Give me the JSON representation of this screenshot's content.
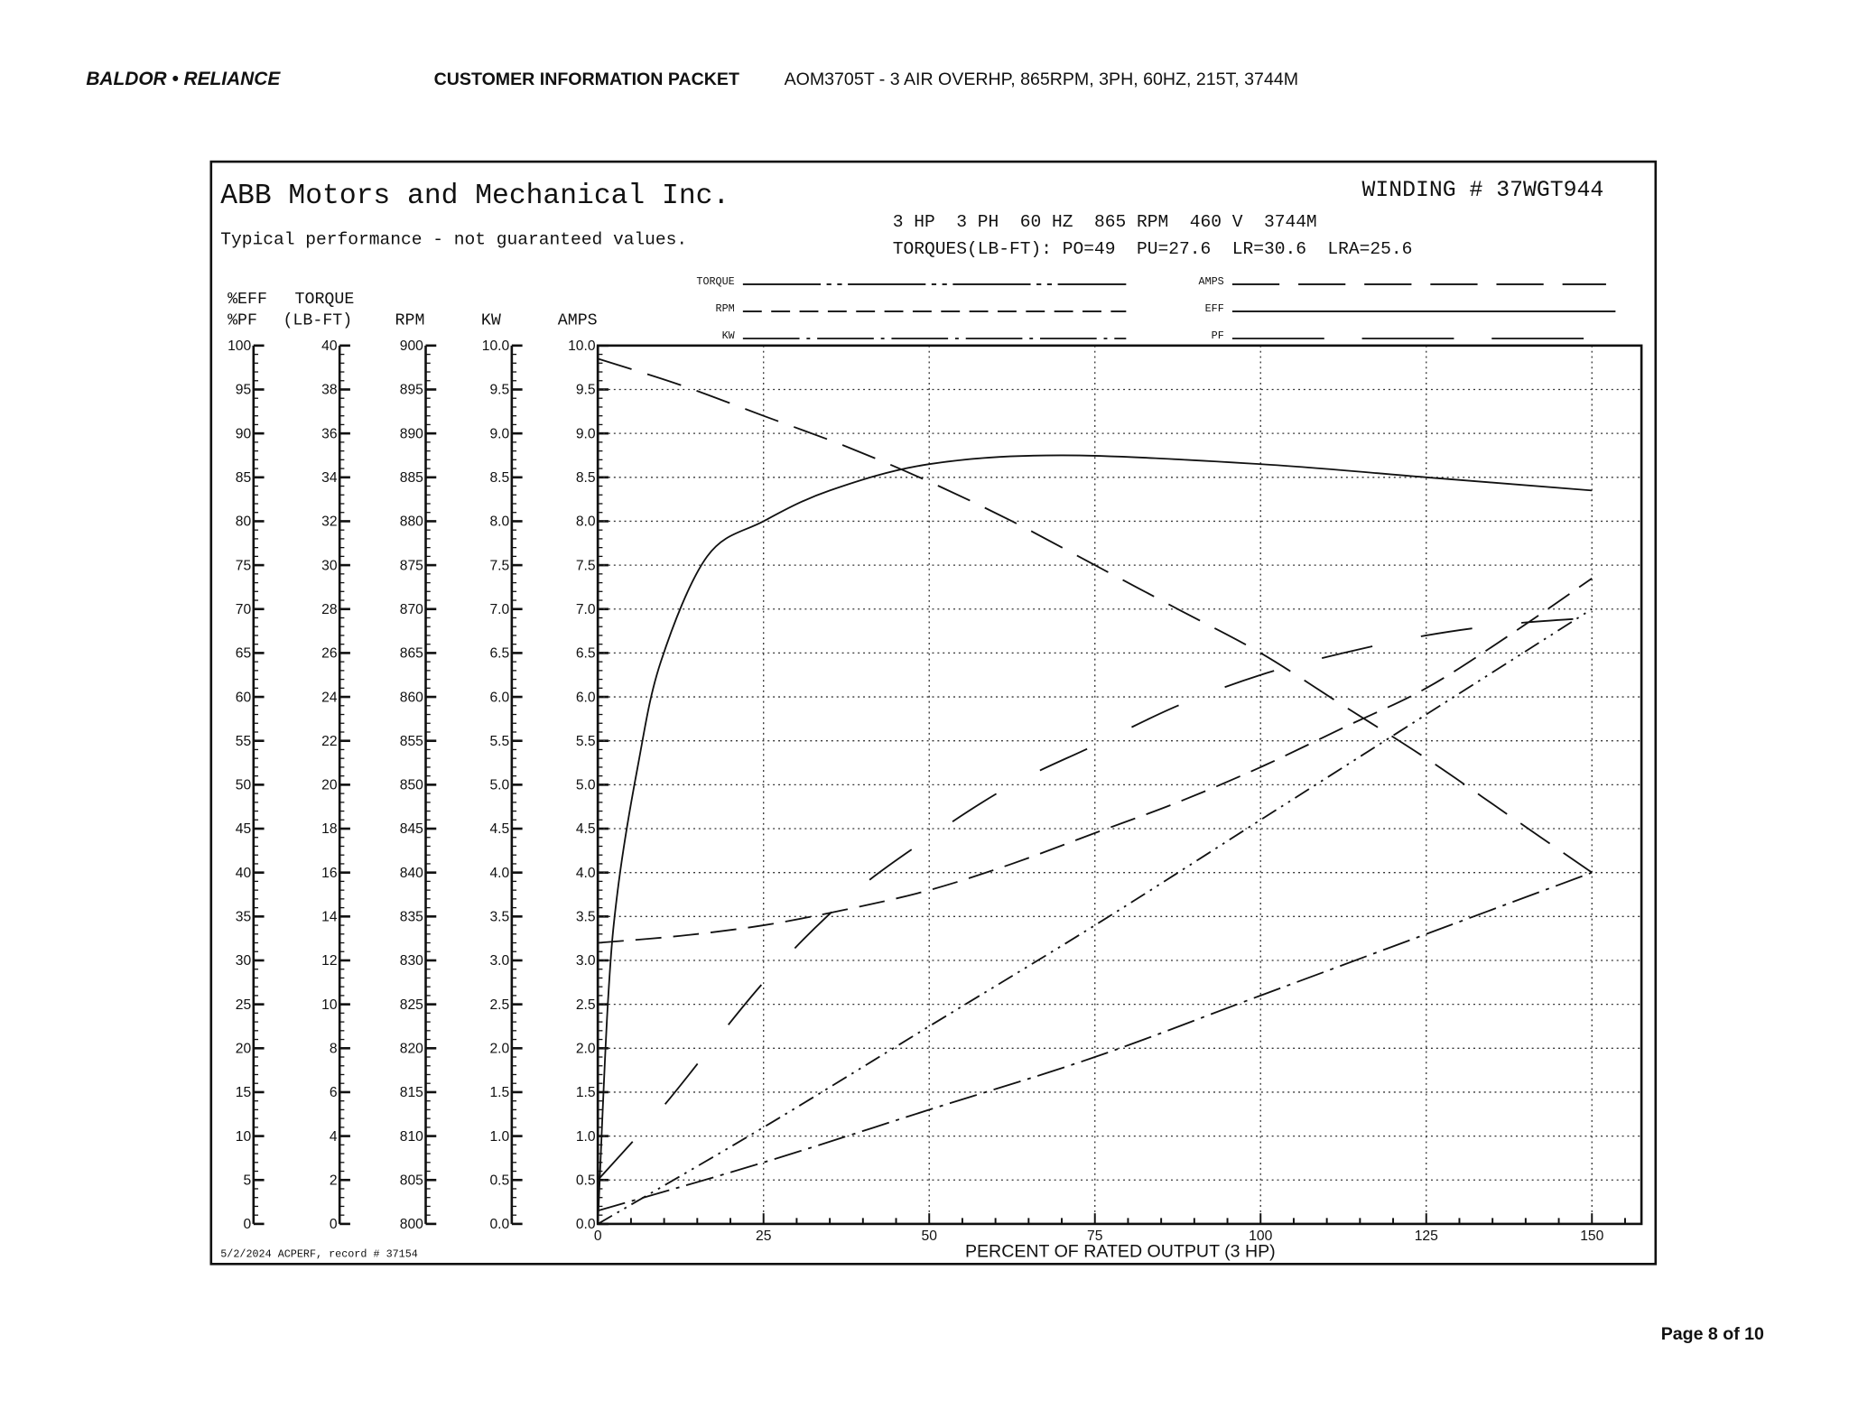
{
  "header": {
    "logo": "BALDOR • RELIANCE",
    "packet_title": "CUSTOMER INFORMATION PACKET",
    "product": "AOM3705T - 3 AIR OVERHP, 865RPM, 3PH, 60HZ, 215T, 3744M"
  },
  "sheet": {
    "company": "ABB Motors and Mechanical Inc.",
    "disclaimer": "Typical performance - not guaranteed values.",
    "winding": "WINDING # 37WGT944",
    "ratings": "3 HP  3 PH  60 HZ  865 RPM  460 V  3744M",
    "torques": "TORQUES(LB-FT): PO=49  PU=27.6  LR=30.6  LRA=25.6",
    "record": "5/2/2024 ACPERF, record # 37154"
  },
  "footer": {
    "page": "Page 8 of 10"
  },
  "chart_data": {
    "type": "line",
    "xlabel": "PERCENT OF RATED OUTPUT (3 HP)",
    "x_ticks": [
      "0",
      "25",
      "50",
      "75",
      "100",
      "125",
      "150"
    ],
    "xlim": [
      0,
      157.5
    ],
    "grid": true,
    "legend": {
      "placement": "top",
      "entries": [
        {
          "label": "TORQUE",
          "style": "dash-dot-dot"
        },
        {
          "label": "RPM",
          "style": "short-dash"
        },
        {
          "label": "KW",
          "style": "dash-dot"
        },
        {
          "label": "AMPS",
          "style": "long-dash"
        },
        {
          "label": "EFF",
          "style": "solid"
        },
        {
          "label": "PF",
          "style": "long-dash-wide-gap"
        }
      ]
    },
    "axes": [
      {
        "key": "effpf",
        "label1": "%EFF",
        "label2": "%PF",
        "range": [
          0,
          100
        ],
        "ticks": [
          "0",
          "5",
          "10",
          "15",
          "20",
          "25",
          "30",
          "35",
          "40",
          "45",
          "50",
          "55",
          "60",
          "65",
          "70",
          "75",
          "80",
          "85",
          "90",
          "95",
          "100"
        ]
      },
      {
        "key": "torque",
        "label1": "TORQUE",
        "label2": "(LB-FT)",
        "range": [
          0,
          40
        ],
        "ticks": [
          "0",
          "2",
          "4",
          "6",
          "8",
          "10",
          "12",
          "14",
          "16",
          "18",
          "20",
          "22",
          "24",
          "26",
          "28",
          "30",
          "32",
          "34",
          "36",
          "38",
          "40"
        ]
      },
      {
        "key": "rpm",
        "label1": "",
        "label2": "RPM",
        "range": [
          800,
          900
        ],
        "ticks": [
          "800",
          "805",
          "810",
          "815",
          "820",
          "825",
          "830",
          "835",
          "840",
          "845",
          "850",
          "855",
          "860",
          "865",
          "870",
          "875",
          "880",
          "885",
          "890",
          "895",
          "900"
        ]
      },
      {
        "key": "kw",
        "label1": "",
        "label2": "KW",
        "range": [
          0,
          10
        ],
        "ticks": [
          "0.0",
          "0.5",
          "1.0",
          "1.5",
          "2.0",
          "2.5",
          "3.0",
          "3.5",
          "4.0",
          "4.5",
          "5.0",
          "5.5",
          "6.0",
          "6.5",
          "7.0",
          "7.5",
          "8.0",
          "8.5",
          "9.0",
          "9.5",
          "10.0"
        ]
      },
      {
        "key": "amps",
        "label1": "",
        "label2": "AMPS",
        "range": [
          0,
          10
        ],
        "ticks": [
          "0.0",
          "0.5",
          "1.0",
          "1.5",
          "2.0",
          "2.5",
          "3.0",
          "3.5",
          "4.0",
          "4.5",
          "5.0",
          "5.5",
          "6.0",
          "6.5",
          "7.0",
          "7.5",
          "8.0",
          "8.5",
          "9.0",
          "9.5",
          "10.0"
        ]
      }
    ],
    "series": [
      {
        "name": "EFF",
        "axis": "effpf",
        "x": [
          0,
          1.5,
          3,
          6,
          9.5,
          16.5,
          25,
          35,
          50,
          70,
          100,
          125,
          150
        ],
        "values": [
          0,
          25,
          38,
          52,
          64,
          76,
          80,
          83.5,
          86.5,
          87.5,
          86.5,
          85,
          83.5
        ]
      },
      {
        "name": "PF",
        "axis": "effpf",
        "x": [
          0,
          10,
          25,
          37.5,
          50,
          62.5,
          75,
          87.5,
          100,
          112.5,
          125,
          137.5,
          150
        ],
        "values": [
          5,
          13.5,
          27.5,
          37,
          44,
          50,
          54.5,
          59,
          62.5,
          65,
          67,
          68.3,
          69
        ]
      },
      {
        "name": "AMPS",
        "axis": "amps",
        "x": [
          0,
          12.5,
          25,
          37.5,
          50,
          62.5,
          75,
          87.5,
          100,
          112.5,
          125,
          137.5,
          150
        ],
        "values": [
          9.85,
          9.55,
          9.2,
          8.85,
          8.45,
          8.0,
          7.5,
          7.0,
          6.5,
          5.9,
          5.3,
          4.65,
          4.0
        ]
      },
      {
        "name": "RPM",
        "axis": "rpm",
        "x": [
          0,
          12.5,
          25,
          37.5,
          50,
          62.5,
          75,
          87.5,
          100,
          112.5,
          125,
          137.5,
          150
        ],
        "values": [
          832,
          832.8,
          834,
          835.8,
          838,
          841,
          844.5,
          848,
          852,
          856.5,
          861,
          867,
          873.5
        ]
      },
      {
        "name": "TORQUE",
        "axis": "torque",
        "x": [
          0,
          25,
          50,
          75,
          100,
          125,
          150
        ],
        "values": [
          0,
          4.4,
          9,
          13.6,
          18.4,
          23.2,
          28
        ]
      },
      {
        "name": "KW",
        "axis": "kw",
        "x": [
          0,
          25,
          50,
          75,
          100,
          125,
          150
        ],
        "values": [
          0.15,
          0.7,
          1.3,
          1.9,
          2.6,
          3.3,
          4.0
        ]
      }
    ],
    "styles": {
      "EFF": "none",
      "PF": "44 42",
      "AMPS": "30 14",
      "RPM": "22 10",
      "TORQUE": "14 5 2 5 2 5",
      "KW": "24 6 3 6"
    }
  }
}
